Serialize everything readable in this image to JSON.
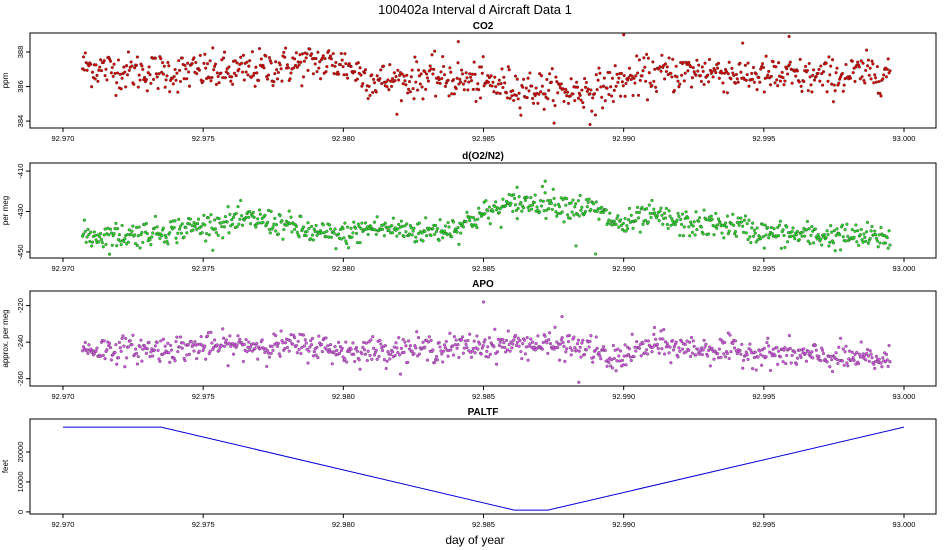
{
  "title": "100402a   Interval d Aircraft Data 1",
  "xlabel": "day of year",
  "chart_data": [
    {
      "type": "scatter",
      "title": "CO2",
      "ylabel": "ppm",
      "xlim": [
        92.9695,
        93.0025
      ],
      "ylim": [
        383.6,
        389.1
      ],
      "xticks": [
        92.97,
        92.975,
        92.98,
        92.985,
        92.99,
        92.995,
        93.0
      ],
      "xtick_labels": [
        "92.970",
        "92.975",
        "92.980",
        "92.985",
        "92.990",
        "92.995",
        "93.000"
      ],
      "yticks": [
        384,
        386,
        388
      ],
      "ytick_labels": [
        "384",
        "386",
        "388"
      ],
      "color": "#e00000",
      "x_range": [
        92.9707,
        92.9995
      ],
      "trend": [
        [
          92.9707,
          387.2
        ],
        [
          92.972,
          386.9
        ],
        [
          92.974,
          386.8
        ],
        [
          92.975,
          386.9
        ],
        [
          92.976,
          386.8
        ],
        [
          92.978,
          387.2
        ],
        [
          92.979,
          387.4
        ],
        [
          92.98,
          387.3
        ],
        [
          92.981,
          386.4
        ],
        [
          92.982,
          386.3
        ],
        [
          92.983,
          386.6
        ],
        [
          92.984,
          386.4
        ],
        [
          92.985,
          386.2
        ],
        [
          92.986,
          386.0
        ],
        [
          92.987,
          385.8
        ],
        [
          92.988,
          385.7
        ],
        [
          92.989,
          385.8
        ],
        [
          92.99,
          386.3
        ],
        [
          92.991,
          386.7
        ],
        [
          92.993,
          386.9
        ],
        [
          92.995,
          386.6
        ],
        [
          92.997,
          386.5
        ],
        [
          92.9995,
          386.9
        ]
      ],
      "scatter_sd": 0.55,
      "outlier_points": [
        [
          92.9841,
          388.6
        ],
        [
          92.99,
          389.0
        ],
        [
          92.9959,
          388.9
        ],
        [
          92.9888,
          383.8
        ]
      ]
    },
    {
      "type": "scatter",
      "title": "d(O2/N2)",
      "ylabel": "per meg",
      "xlim": [
        92.9695,
        93.0025
      ],
      "ylim": [
        -453.0,
        -406.0
      ],
      "xticks": [
        92.97,
        92.975,
        92.98,
        92.985,
        92.99,
        92.995,
        93.0
      ],
      "xtick_labels": [
        "92.970",
        "92.975",
        "92.980",
        "92.985",
        "92.990",
        "92.995",
        "93.000"
      ],
      "yticks": [
        -450,
        -430,
        -410
      ],
      "ytick_labels": [
        "-450",
        "-430",
        "-410"
      ],
      "color": "#22dd22",
      "x_range": [
        92.9707,
        92.9995
      ],
      "trend": [
        [
          92.9707,
          -442
        ],
        [
          92.972,
          -442
        ],
        [
          92.974,
          -439
        ],
        [
          92.976,
          -435
        ],
        [
          92.977,
          -434
        ],
        [
          92.978,
          -437
        ],
        [
          92.979,
          -441
        ],
        [
          92.98,
          -442
        ],
        [
          92.981,
          -438
        ],
        [
          92.983,
          -440
        ],
        [
          92.984,
          -438
        ],
        [
          92.985,
          -431
        ],
        [
          92.986,
          -427
        ],
        [
          92.987,
          -425
        ],
        [
          92.988,
          -427
        ],
        [
          92.989,
          -429
        ],
        [
          92.9895,
          -434
        ],
        [
          92.99,
          -437
        ],
        [
          92.991,
          -432
        ],
        [
          92.992,
          -436
        ],
        [
          92.994,
          -437
        ],
        [
          92.995,
          -441
        ],
        [
          92.997,
          -442
        ],
        [
          92.9995,
          -443
        ]
      ],
      "scatter_sd": 3.2,
      "outlier_points": [
        [
          92.9862,
          -418
        ],
        [
          92.9872,
          -415
        ],
        [
          92.9883,
          -447
        ],
        [
          92.989,
          -451
        ]
      ]
    },
    {
      "type": "scatter",
      "title": "APO",
      "ylabel": "approx. per meg",
      "xlim": [
        92.9695,
        93.0025
      ],
      "ylim": [
        -264.0,
        -212.0
      ],
      "xticks": [
        92.97,
        92.975,
        92.98,
        92.985,
        92.99,
        92.995,
        93.0
      ],
      "xtick_labels": [
        "92.970",
        "92.975",
        "92.980",
        "92.985",
        "92.990",
        "92.995",
        "93.000"
      ],
      "yticks": [
        -260,
        -240,
        -220
      ],
      "ytick_labels": [
        "-260",
        "-240",
        "-220"
      ],
      "color": "#dd55ee",
      "x_range": [
        92.9707,
        92.9995
      ],
      "trend": [
        [
          92.9707,
          -244
        ],
        [
          92.973,
          -244
        ],
        [
          92.976,
          -242
        ],
        [
          92.979,
          -242
        ],
        [
          92.98,
          -245
        ],
        [
          92.982,
          -244
        ],
        [
          92.984,
          -243
        ],
        [
          92.986,
          -241
        ],
        [
          92.988,
          -242
        ],
        [
          92.989,
          -244
        ],
        [
          92.9895,
          -251
        ],
        [
          92.99,
          -247
        ],
        [
          92.991,
          -242
        ],
        [
          92.993,
          -244
        ],
        [
          92.995,
          -246
        ],
        [
          92.997,
          -248
        ],
        [
          92.9995,
          -250
        ]
      ],
      "scatter_sd": 3.6,
      "outlier_points": [
        [
          92.985,
          -218
        ],
        [
          92.9878,
          -226
        ],
        [
          92.9884,
          -262
        ],
        [
          92.9911,
          -232
        ]
      ]
    },
    {
      "type": "line",
      "title": "PALTF",
      "ylabel": "feet",
      "xlim": [
        92.9695,
        93.0025
      ],
      "ylim": [
        -700,
        31000
      ],
      "xticks": [
        92.97,
        92.975,
        92.98,
        92.985,
        92.99,
        92.995,
        93.0
      ],
      "xtick_labels": [
        "92.970",
        "92.975",
        "92.980",
        "92.985",
        "92.990",
        "92.995",
        "93.000"
      ],
      "yticks": [
        0,
        10000,
        20000
      ],
      "ytick_labels": [
        "0",
        "10000",
        "20000"
      ],
      "color": "#0000dd",
      "points": [
        [
          92.97,
          28300
        ],
        [
          92.9712,
          28300
        ],
        [
          92.9735,
          28300
        ],
        [
          92.9861,
          600
        ],
        [
          92.9873,
          600
        ],
        [
          93.0,
          28300
        ]
      ]
    }
  ]
}
